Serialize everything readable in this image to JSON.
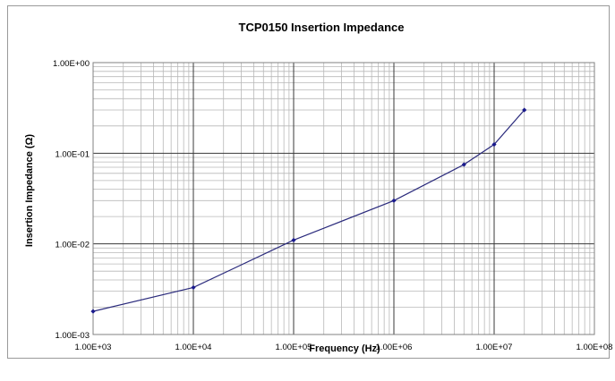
{
  "chart_data": {
    "type": "line",
    "title": "TCP0150 Insertion Impedance",
    "xlabel": "Frequency  (Hz)",
    "ylabel": "Insertion Impedance (Ω)",
    "x_scale": "log",
    "y_scale": "log",
    "xlim": [
      1000,
      100000000
    ],
    "ylim": [
      0.001,
      1.0
    ],
    "x_ticks": [
      "1.00E+03",
      "1.00E+04",
      "1.00E+05",
      "1.00E+06",
      "1.00E+07",
      "1.00E+08"
    ],
    "y_ticks": [
      "1.00E-03",
      "1.00E-02",
      "1.00E-01",
      "1.00E+00"
    ],
    "grid": true,
    "legend": "none",
    "line_color": "#2a2a7c",
    "marker_color": "#1a1a8c",
    "series": [
      {
        "x": [
          1000,
          10000,
          100000,
          1000000,
          5000000,
          10000000,
          20000000
        ],
        "y": [
          0.0018,
          0.0033,
          0.011,
          0.03,
          0.075,
          0.125,
          0.3
        ]
      }
    ]
  }
}
